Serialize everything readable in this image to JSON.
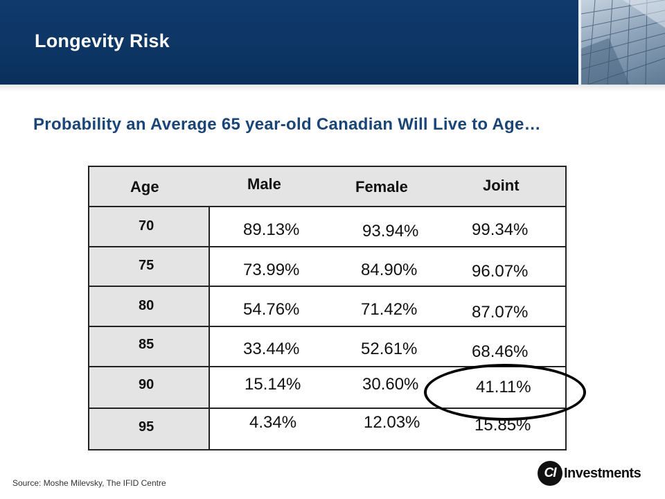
{
  "header": {
    "title": "Longevity Risk"
  },
  "subtitle": "Probability an Average 65 year-old Canadian Will Live to Age…",
  "table": {
    "headers": [
      "Age",
      "Male",
      "Female",
      "Joint"
    ],
    "rows": [
      {
        "age": "70",
        "male": "89.13%",
        "female": "93.94%",
        "joint": "99.34%"
      },
      {
        "age": "75",
        "male": "73.99%",
        "female": "84.90%",
        "joint": "96.07%"
      },
      {
        "age": "80",
        "male": "54.76%",
        "female": "71.42%",
        "joint": "87.07%"
      },
      {
        "age": "85",
        "male": "33.44%",
        "female": "52.61%",
        "joint": "68.46%"
      },
      {
        "age": "90",
        "male": "15.14%",
        "female": "30.60%",
        "joint": "41.11%"
      },
      {
        "age": "95",
        "male": "4.34%",
        "female": "12.03%",
        "joint": "15.85%"
      }
    ],
    "highlighted_cell": "41.11%"
  },
  "footer": {
    "source": "Source: Moshe Milevsky, The IFID Centre",
    "logo_mark": "CI",
    "logo_text": "Investments"
  },
  "colors": {
    "header_band": "#0d3564",
    "subtitle": "#1a4578",
    "table_shade": "#e4e4e4"
  }
}
